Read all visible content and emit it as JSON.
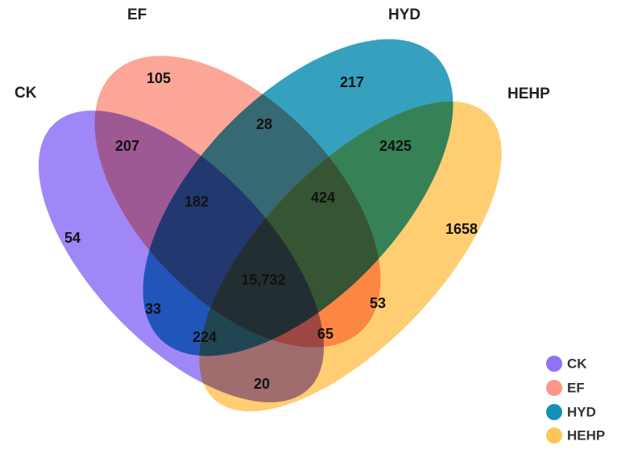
{
  "sets": [
    {
      "id": "ck",
      "label": "CK",
      "color": "#8F72F7"
    },
    {
      "id": "ef",
      "label": "EF",
      "color": "#FB9686"
    },
    {
      "id": "hyd",
      "label": "HYD",
      "color": "#1391B4"
    },
    {
      "id": "hehp",
      "label": "HEHP",
      "color": "#FFC559"
    }
  ],
  "regions": {
    "ck_only": "54",
    "ef_only": "105",
    "hyd_only": "217",
    "hehp_only": "1658",
    "ck_ef": "207",
    "ef_hyd": "28",
    "hyd_hehp": "2425",
    "ck_ef_hyd": "182",
    "ef_hyd_hehp": "424",
    "all_four": "15,732",
    "ck_hyd": "33",
    "ef_hehp": "53",
    "ck_hyd_hehp": "224",
    "ck_ef_hehp": "65",
    "ck_hehp": "20"
  },
  "legend": [
    {
      "label": "CK",
      "color": "#8F72F7"
    },
    {
      "label": "EF",
      "color": "#FB9686"
    },
    {
      "label": "HYD",
      "color": "#1391B4"
    },
    {
      "label": "HEHP",
      "color": "#FFC559"
    }
  ]
}
